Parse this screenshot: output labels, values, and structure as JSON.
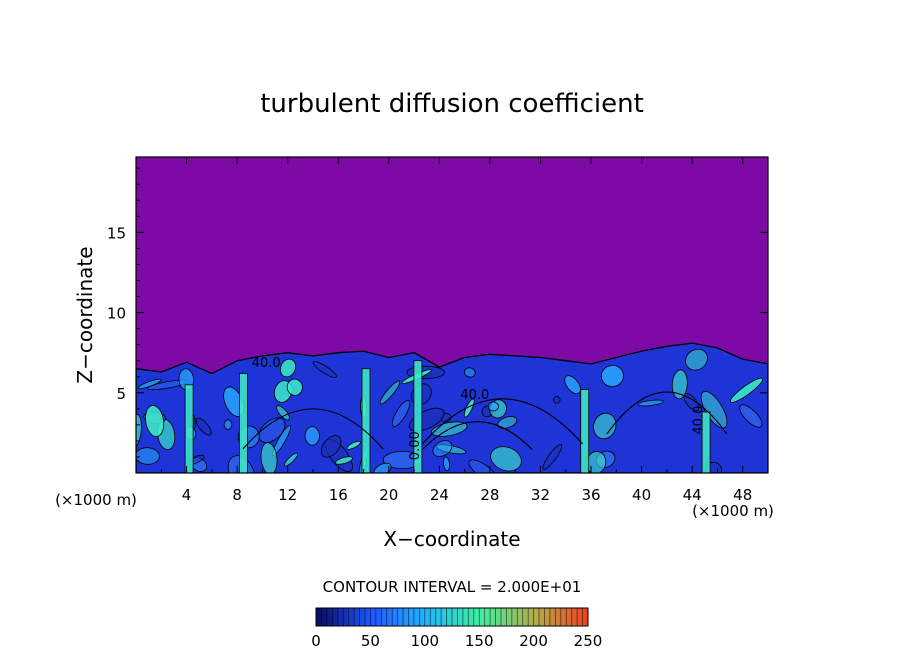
{
  "chart_data": {
    "type": "heatmap",
    "title": "turbulent diffusion coefficient",
    "xlabel": "X−coordinate",
    "ylabel": "Z−coordinate",
    "x_unit_left": "(×1000 m)",
    "x_unit_right": "(×1000 m)",
    "xlim": [
      0,
      50
    ],
    "ylim": [
      0,
      19.7
    ],
    "x_ticks": [
      4,
      8,
      12,
      16,
      20,
      24,
      28,
      32,
      36,
      40,
      44,
      48
    ],
    "y_ticks": [
      5,
      10,
      15
    ],
    "contour_interval_text": "CONTOUR INTERVAL = 2.000E+01",
    "contour_labels": [
      {
        "text": "40.0",
        "x": 10.3,
        "z": 6.6
      },
      {
        "text": "40.0",
        "x": 26.8,
        "z": 4.6
      },
      {
        "text": "40.0",
        "x": 44.8,
        "z": 3.3
      },
      {
        "text": "0.00",
        "x": 22.4,
        "z": 1.7
      }
    ],
    "background_level": 0,
    "turbulent_layer_top_profile": [
      [
        0,
        6.5
      ],
      [
        2,
        6.3
      ],
      [
        4,
        6.9
      ],
      [
        6,
        6.2
      ],
      [
        8,
        7.0
      ],
      [
        10,
        7.3
      ],
      [
        12,
        7.5
      ],
      [
        14,
        7.3
      ],
      [
        16,
        7.5
      ],
      [
        18,
        7.6
      ],
      [
        20,
        7.2
      ],
      [
        22,
        7.5
      ],
      [
        24,
        6.6
      ],
      [
        26,
        7.2
      ],
      [
        28,
        7.4
      ],
      [
        30,
        7.3
      ],
      [
        32,
        7.2
      ],
      [
        34,
        7.0
      ],
      [
        36,
        6.8
      ],
      [
        38,
        7.2
      ],
      [
        40,
        7.6
      ],
      [
        42,
        7.9
      ],
      [
        44,
        8.1
      ],
      [
        46,
        7.8
      ],
      [
        48,
        7.1
      ],
      [
        50,
        6.8
      ]
    ],
    "colorbar": {
      "min": 0,
      "max": 250,
      "tick_values": [
        0,
        50,
        100,
        150,
        200,
        250
      ],
      "tick_labels": [
        "0",
        "50",
        "100",
        "150",
        "200",
        "250"
      ],
      "colors": [
        "#0a0aa0",
        "#1e55ff",
        "#21b4ff",
        "#3ef0a0",
        "#c8b040",
        "#f04020"
      ]
    },
    "colors": {
      "background_fill": "#7e0aa6",
      "low_fill": "#1f34d6",
      "mid_fill": "#28a8ff",
      "high_fill": "#3ef0c8",
      "contour_line": "#000000"
    }
  }
}
